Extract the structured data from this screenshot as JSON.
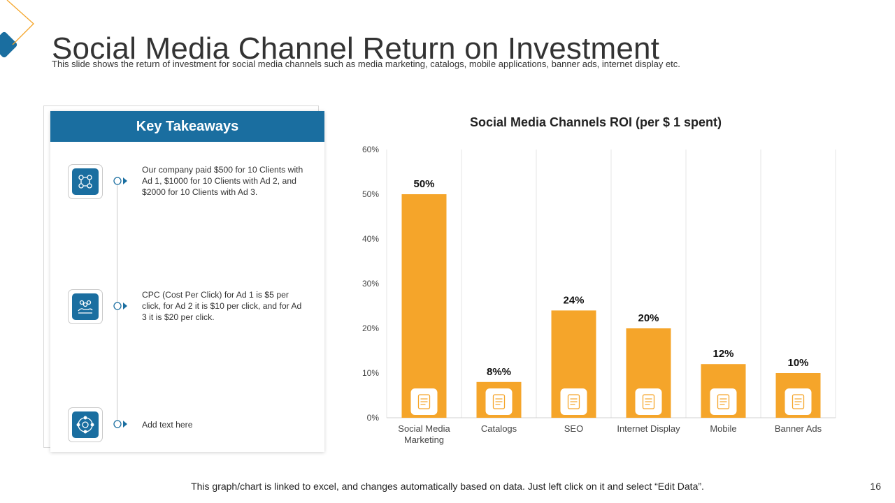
{
  "header": {
    "title": "Social Media Channel Return on Investment",
    "subtitle": "This slide shows the return of investment for social media  channels such as media marketing, catalogs, mobile applications, banner ads, internet display etc."
  },
  "takeaways": {
    "title": "Key Takeaways",
    "items": [
      {
        "icon": "people-network-icon",
        "text": "Our company paid $500 for 10 Clients with Ad 1, $1000 for 10 Clients with Ad 2, and $2000 for 10 Clients with Ad 3."
      },
      {
        "icon": "team-hand-icon",
        "text": "CPC (Cost Per Click) for Ad 1 is $5 per click, for Ad 2 it is $10 per click, and for Ad 3 it is $20 per click."
      },
      {
        "icon": "process-cycle-icon",
        "text": "Add text here"
      }
    ]
  },
  "chart_data": {
    "type": "bar",
    "title": "Social Media Channels ROI (per $ 1 spent)",
    "categories": [
      "Social Media Marketing",
      "Catalogs",
      "SEO",
      "Internet Display",
      "Mobile",
      "Banner Ads"
    ],
    "category_lines": [
      [
        "Social Media",
        "Marketing"
      ],
      [
        "Catalogs"
      ],
      [
        "SEO"
      ],
      [
        "Internet Display"
      ],
      [
        "Mobile"
      ],
      [
        "Banner Ads"
      ]
    ],
    "values": [
      50,
      8,
      24,
      20,
      12,
      10
    ],
    "data_labels": [
      "50%",
      "8%%",
      "24%",
      "20%",
      "12%",
      "10%"
    ],
    "bar_icons": [
      "social-media-icon",
      "catalog-icon",
      "seo-icon",
      "monitor-icon",
      "mobile-icon",
      "banner-ads-icon"
    ],
    "y_ticks": [
      "0%",
      "10%",
      "20%",
      "30%",
      "40%",
      "50%",
      "60%"
    ],
    "ylim": [
      0,
      60
    ],
    "xlabel": "",
    "ylabel": "",
    "grid": "vertical",
    "bar_color": "#f5a52a"
  },
  "footer": {
    "note": "This graph/chart is linked to excel, and changes automatically based on data. Just left click on it and select “Edit Data”.",
    "page_number": "16"
  },
  "colors": {
    "accent_blue": "#1a6ea0",
    "accent_orange": "#f5a52a"
  }
}
